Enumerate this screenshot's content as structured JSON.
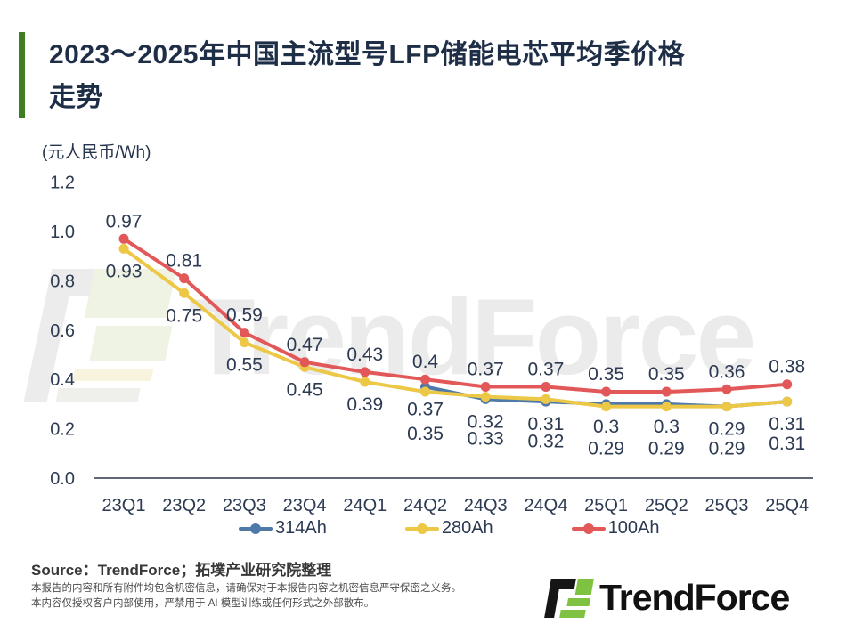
{
  "header": {
    "title_line1": "2023～2025年中国主流型号LFP储能电芯平均季价格",
    "title_line2": "走势"
  },
  "chart_data": {
    "type": "line",
    "title": "2023～2025年中国主流型号LFP储能电芯平均季价格走势",
    "unit_label": "(元人民币/Wh)",
    "categories": [
      "23Q1",
      "23Q2",
      "23Q3",
      "23Q4",
      "24Q1",
      "24Q2",
      "24Q3",
      "24Q4",
      "25Q1",
      "25Q2",
      "25Q3",
      "25Q4"
    ],
    "series": [
      {
        "name": "314Ah",
        "color": "#4e79a8",
        "values": [
          null,
          null,
          null,
          null,
          null,
          0.37,
          0.32,
          0.31,
          0.3,
          0.3,
          0.29,
          0.31
        ]
      },
      {
        "name": "280Ah",
        "color": "#ecc846",
        "values": [
          0.93,
          0.75,
          0.55,
          0.45,
          0.39,
          0.35,
          0.33,
          0.32,
          0.29,
          0.29,
          0.29,
          0.31
        ]
      },
      {
        "name": "100Ah",
        "color": "#e25858",
        "values": [
          0.97,
          0.81,
          0.59,
          0.47,
          0.43,
          0.4,
          0.37,
          0.37,
          0.35,
          0.35,
          0.36,
          0.38
        ]
      }
    ],
    "ylim": [
      0,
      1.2
    ],
    "yticks": [
      0,
      0.2,
      0.4,
      0.6,
      0.8,
      1.0,
      1.2
    ],
    "grid": false,
    "legend_position": "bottom"
  },
  "watermark": {
    "text": "TrendForce"
  },
  "footer": {
    "source": "Source：TrendForce；拓墣产业研究院整理",
    "disclaimer_line1": "本报告的内容和所有附件均包含机密信息，请确保对于本报告内容之机密信息严守保密之义务。",
    "disclaimer_line2": "本内容仅授权客户内部使用，严禁用于 AI 模型训练或任何形式之外部散布。",
    "logo_text": "TrendForce"
  },
  "colors": {
    "accent_green": "#3e7d21",
    "logo_green": "#7fc241",
    "text_navy": "#2c3a52",
    "axis_line": "#2b3648"
  }
}
